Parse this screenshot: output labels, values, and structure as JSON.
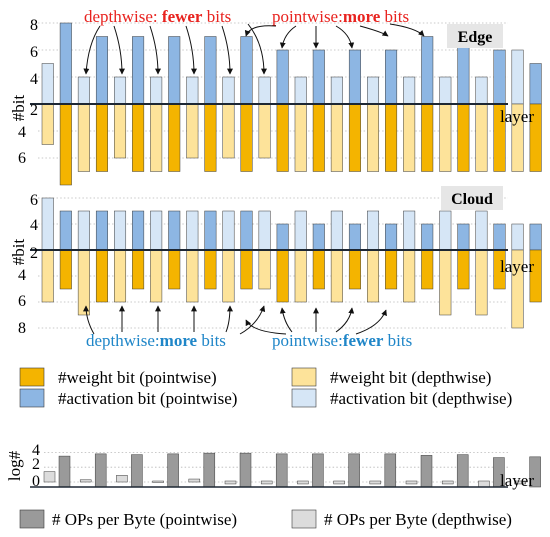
{
  "chart_data": [
    {
      "type": "bar",
      "tag": "Edge",
      "ylabel": "#bit",
      "xlabel": "layer",
      "ytick_labels_top": [
        "2",
        "4",
        "6",
        "8"
      ],
      "ytick_labels_bottom": [
        "4",
        "6"
      ],
      "activation_top": [
        5,
        8,
        4,
        7,
        4,
        7,
        4,
        7,
        4,
        7,
        4,
        7,
        4,
        6,
        4,
        6,
        4,
        6,
        4,
        6,
        4,
        7,
        4,
        7,
        4,
        6,
        6,
        5
      ],
      "weight_bottom": [
        5,
        8,
        7,
        7,
        6,
        7,
        7,
        7,
        6,
        7,
        6,
        7,
        6,
        7,
        7,
        7,
        7,
        7,
        7,
        7,
        7,
        7,
        7,
        7,
        7,
        7,
        7,
        7
      ]
    },
    {
      "type": "bar",
      "tag": "Cloud",
      "ylabel": "#bit",
      "xlabel": "layer",
      "ytick_labels_top": [
        "2",
        "4",
        "6"
      ],
      "ytick_labels_bottom": [
        "4",
        "6",
        "8"
      ],
      "activation_top": [
        6,
        5,
        5,
        5,
        5,
        5,
        5,
        5,
        5,
        5,
        5,
        5,
        5,
        4,
        5,
        4,
        5,
        4,
        5,
        4,
        5,
        4,
        5,
        4,
        5,
        4,
        4,
        4
      ],
      "weight_bottom": [
        6,
        5,
        7,
        6,
        6,
        5,
        6,
        5,
        6,
        5,
        6,
        5,
        5,
        6,
        6,
        5,
        6,
        5,
        6,
        5,
        6,
        5,
        7,
        5,
        7,
        5,
        8,
        6
      ]
    },
    {
      "type": "bar",
      "ylabel": "log#",
      "xlabel": "layer",
      "ytick_labels": [
        "0",
        "2",
        "4"
      ],
      "series": [
        {
          "name": "# OPs per Byte (pointwise)",
          "values": [
            3.5,
            3.8,
            3.7,
            3.8,
            3.9,
            3.9,
            3.8,
            3.8,
            3.8,
            3.8,
            3.6,
            3.7,
            3.3,
            3.4
          ]
        },
        {
          "name": "# OPs per Byte (depthwise)",
          "values": [
            1.4,
            0.3,
            0.9,
            -0.2,
            0.4,
            -0.4,
            -0.4,
            -0.4,
            -0.4,
            -0.4,
            -0.4,
            -0.4,
            -0.8,
            -0.4
          ]
        }
      ]
    }
  ],
  "legend": {
    "weight_pw": "#weight bit (pointwise)",
    "weight_dw": "#weight bit (depthwise)",
    "act_pw": "#activation bit (pointwise)",
    "act_dw": "#activation bit (depthwise)",
    "ops_pw": "# OPs per Byte (pointwise)",
    "ops_dw": "# OPs per Byte (depthwise)"
  },
  "annotations": {
    "edge_dw_pre": "depthwise: ",
    "edge_dw_bold": "fewer",
    "edge_dw_post": " bits",
    "edge_pw_pre": "pointwise:",
    "edge_pw_bold": "more",
    "edge_pw_post": " bits",
    "cloud_dw_pre": "depthwise:",
    "cloud_dw_bold": "more",
    "cloud_dw_post": " bits",
    "cloud_pw_pre": "pointwise:",
    "cloud_pw_bold": "fewer",
    "cloud_pw_post": " bits"
  },
  "colors": {
    "weight_pw": "#f4b400",
    "weight_dw": "#fde39a",
    "act_pw": "#8db6e3",
    "act_dw": "#d6e6f6",
    "ops_pw": "#9a9a9a",
    "ops_dw": "#dcdcdc",
    "annotation_red": "#e8231f",
    "annotation_blue": "#1f86c8"
  }
}
